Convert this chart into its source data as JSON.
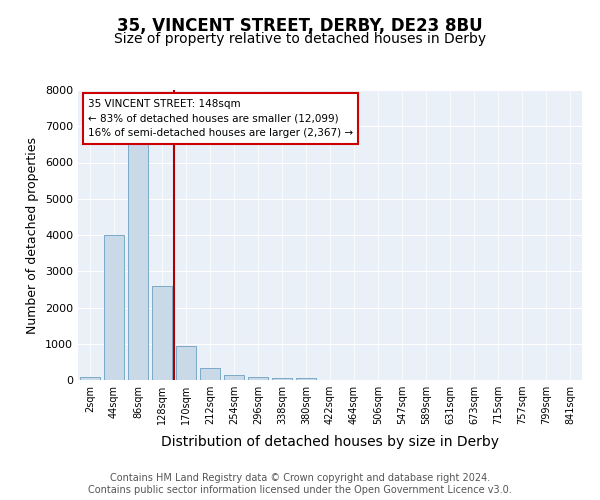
{
  "title": "35, VINCENT STREET, DERBY, DE23 8BU",
  "subtitle": "Size of property relative to detached houses in Derby",
  "xlabel": "Distribution of detached houses by size in Derby",
  "ylabel": "Number of detached properties",
  "bin_labels": [
    "2sqm",
    "44sqm",
    "86sqm",
    "128sqm",
    "170sqm",
    "212sqm",
    "254sqm",
    "296sqm",
    "338sqm",
    "380sqm",
    "422sqm",
    "464sqm",
    "506sqm",
    "547sqm",
    "589sqm",
    "631sqm",
    "673sqm",
    "715sqm",
    "757sqm",
    "799sqm",
    "841sqm"
  ],
  "bar_values": [
    75,
    4000,
    6550,
    2600,
    950,
    320,
    140,
    80,
    60,
    60,
    0,
    0,
    0,
    0,
    0,
    0,
    0,
    0,
    0,
    0,
    0
  ],
  "bar_color": "#c9d9e8",
  "bar_edge_color": "#7aaac8",
  "vline_color": "#aa0000",
  "vline_pos": 3.5,
  "annotation_text": "35 VINCENT STREET: 148sqm\n← 83% of detached houses are smaller (12,099)\n16% of semi-detached houses are larger (2,367) →",
  "annotation_box_color": "#ffffff",
  "annotation_box_edge": "#cc0000",
  "ylim": [
    0,
    8000
  ],
  "yticks": [
    0,
    1000,
    2000,
    3000,
    4000,
    5000,
    6000,
    7000,
    8000
  ],
  "footer_text": "Contains HM Land Registry data © Crown copyright and database right 2024.\nContains public sector information licensed under the Open Government Licence v3.0.",
  "plot_bg_color": "#eaf0f8",
  "title_fontsize": 12,
  "subtitle_fontsize": 10,
  "axis_label_fontsize": 9,
  "tick_fontsize": 7,
  "footer_fontsize": 7
}
